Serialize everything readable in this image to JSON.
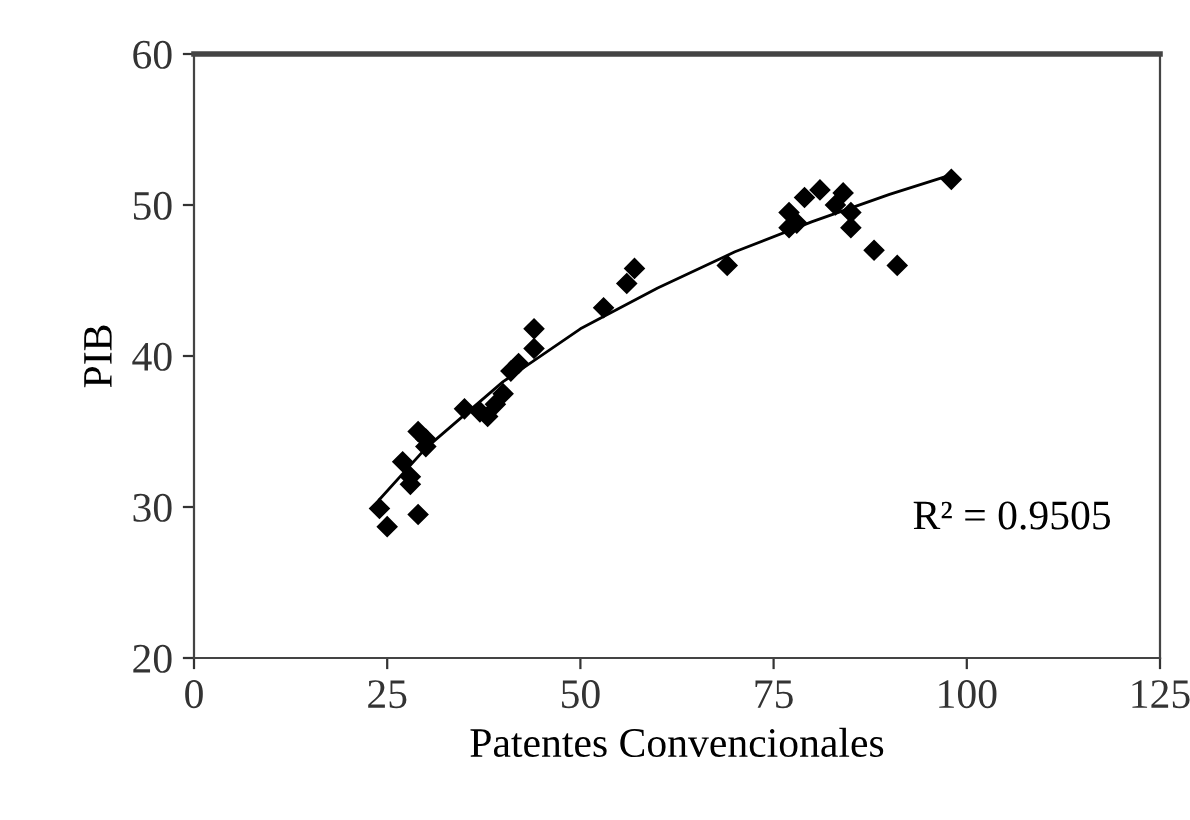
{
  "chart_data": {
    "type": "scatter",
    "xlabel": "Patentes Convencionales",
    "ylabel": "PIB",
    "xlim": [
      0,
      125
    ],
    "xticks": [
      0,
      25,
      50,
      75,
      100,
      125
    ],
    "ylim": [
      20,
      60
    ],
    "yticks": [
      20,
      30,
      40,
      50,
      60
    ],
    "grid": false,
    "legend": false,
    "marker": "diamond",
    "annotations": [
      "R² = 0.9505"
    ],
    "series": [
      {
        "color": "#000000",
        "x": [
          24,
          25,
          27,
          28,
          28,
          29,
          29,
          30,
          30,
          35,
          37,
          38,
          39,
          40,
          41,
          42,
          44,
          44,
          53,
          56,
          57,
          69,
          77,
          77,
          78,
          79,
          81,
          83,
          84,
          85,
          85,
          88,
          91,
          98
        ],
        "values": [
          29.9,
          28.7,
          33,
          32,
          31.5,
          35,
          29.5,
          34,
          34.5,
          36.5,
          36.3,
          36,
          36.8,
          37.5,
          39,
          39.5,
          41.8,
          40.5,
          43.2,
          44.8,
          45.8,
          46,
          49.5,
          48.5,
          48.8,
          50.5,
          51,
          50,
          50.8,
          49.5,
          48.5,
          47,
          46,
          51.7
        ]
      },
      {
        "type": "line",
        "color": "#000000",
        "marker": "none",
        "line_style": "solid",
        "x": [
          24,
          30,
          40,
          50,
          60,
          70,
          80,
          90,
          98
        ],
        "values": [
          30.5,
          33.9,
          38.3,
          41.8,
          44.5,
          46.9,
          48.9,
          50.7,
          52.0
        ]
      }
    ]
  }
}
